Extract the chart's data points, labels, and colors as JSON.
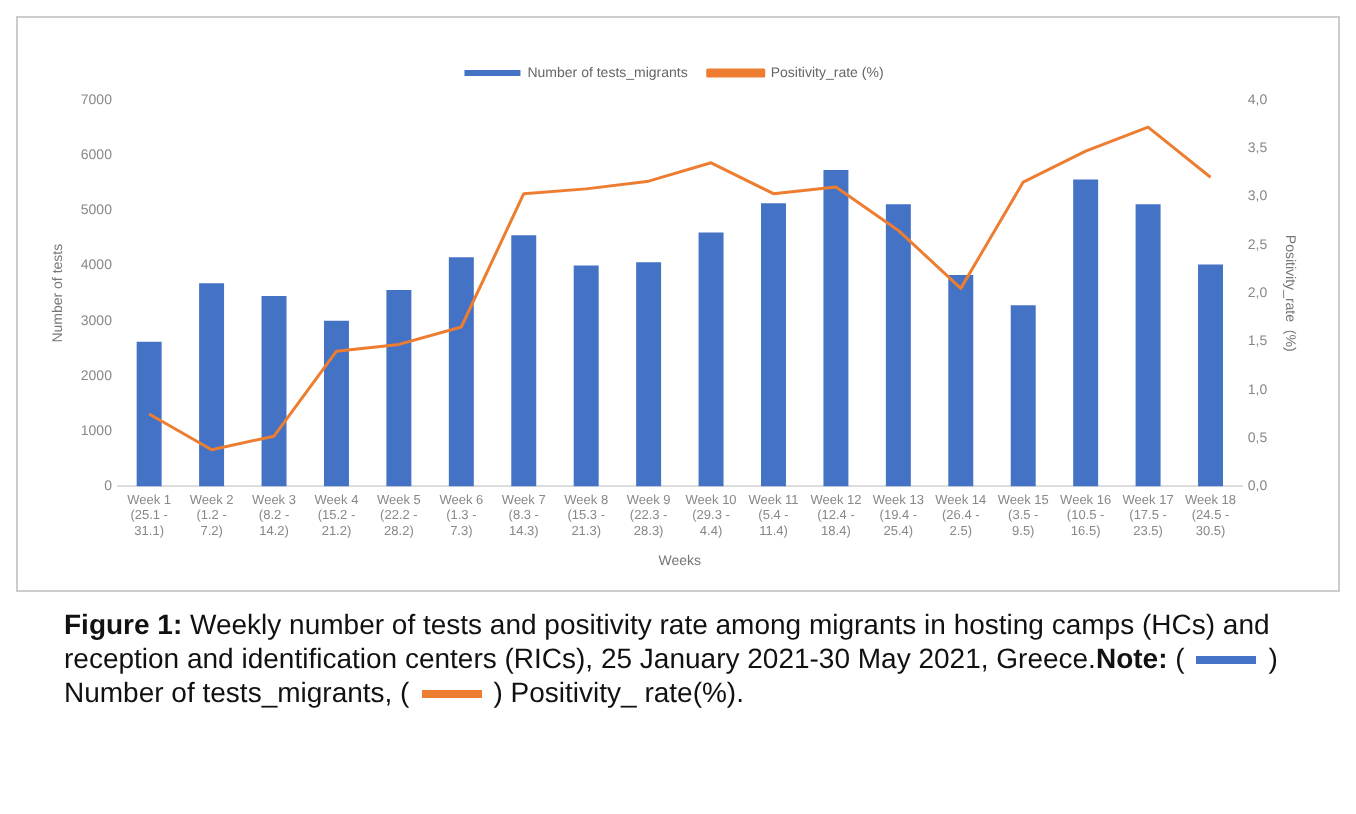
{
  "chart_data": {
    "type": "bar",
    "xlabel": "Weeks",
    "ylabel": "Number of tests",
    "y2label": "Positivity_rate  (%)",
    "categories": [
      "Week 1 (25.1 - 31.1)",
      "Week 2 (1.2 - 7.2)",
      "Week 3 (8.2 - 14.2)",
      "Week 4 (15.2 - 21.2)",
      "Week 5 (22.2 - 28.2)",
      "Week 6 (1.3 - 7.3)",
      "Week 7 (8.3 - 14.3)",
      "Week 8 (15.3 - 21.3)",
      "Week 9 (22.3 - 28.3)",
      "Week 10 (29.3 - 4.4)",
      "Week 11 (5.4 - 11.4)",
      "Week 12 (12.4 - 18.4)",
      "Week 13 (19.4 - 25.4)",
      "Week 14 (26.4 - 2.5)",
      "Week 15 (3.5 - 9.5)",
      "Week 16 (10.5 - 16.5)",
      "Week 17 (17.5 - 23.5)",
      "Week 18 (24.5 - 30.5)"
    ],
    "series": [
      {
        "name": "Number of tests_migrants",
        "color": "#4472c4",
        "values": [
          2620,
          3680,
          3450,
          3000,
          3560,
          4150,
          4550,
          4000,
          4060,
          4600,
          5130,
          5730,
          5110,
          3830,
          3280,
          5560,
          5110,
          4020
        ]
      },
      {
        "name": "Positivity_rate (%)",
        "type": "line",
        "axis": "y2",
        "color": "#ed7d31",
        "values": [
          0.75,
          0.38,
          0.52,
          1.4,
          1.47,
          1.65,
          3.03,
          3.08,
          3.16,
          3.35,
          3.03,
          3.1,
          2.65,
          2.05,
          3.15,
          3.47,
          3.72,
          3.2
        ]
      }
    ],
    "ylim": [
      0,
      7000
    ],
    "yticks": [
      0,
      1000,
      2000,
      3000,
      4000,
      5000,
      6000,
      7000
    ],
    "y2lim": [
      0,
      4
    ],
    "y2ticks": [
      {
        "value": 0,
        "label": "0,0"
      },
      {
        "value": 0.5,
        "label": "0,5"
      },
      {
        "value": 1,
        "label": "1,0"
      },
      {
        "value": 1.5,
        "label": "1,5"
      },
      {
        "value": 2,
        "label": "2,0"
      },
      {
        "value": 2.5,
        "label": "2,5"
      },
      {
        "value": 3,
        "label": "3,0"
      },
      {
        "value": 3.5,
        "label": "3,5"
      },
      {
        "value": 4,
        "label": "4,0"
      }
    ],
    "grid": false,
    "legend": "top",
    "marker": "none",
    "line_style": "solid",
    "annotations": [
      "Figure 1: Weekly number of tests and positivity rate among migrants in hosting camps (HCs) and reception and identification centers (RICs), 25 January 2021-30 May 2021, Greece.",
      "Note: (",
      ") Number of tests_migrants, (",
      ") Positivity_ rate(%)."
    ]
  }
}
